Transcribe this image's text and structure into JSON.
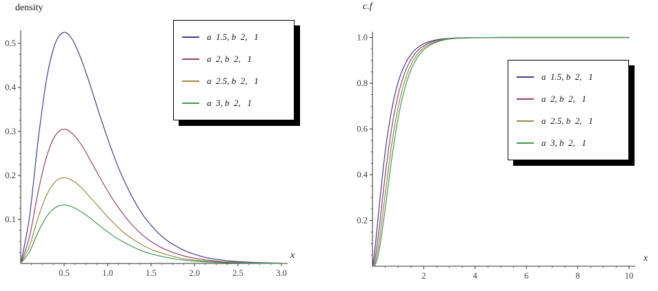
{
  "chart_data": [
    {
      "type": "line",
      "title": "density",
      "xlabel": "x",
      "ylabel": "density",
      "xlim": [
        0,
        3.05
      ],
      "ylim": [
        0,
        0.56
      ],
      "xticks": [
        0.5,
        1.0,
        1.5,
        2.0,
        2.5,
        3.0
      ],
      "xtick_labels": [
        "0.5",
        "1.0",
        "1.5",
        "2.0",
        "2.5",
        "3.0"
      ],
      "yticks": [
        0.1,
        0.2,
        0.3,
        0.4,
        0.5
      ],
      "ytick_labels": [
        "0.1",
        "0.2",
        "0.3",
        "0.4",
        "0.5"
      ],
      "grid": false,
      "legend_position": "top-right",
      "x": [
        0,
        0.1,
        0.2,
        0.3,
        0.4,
        0.5,
        0.6,
        0.7,
        0.8,
        0.9,
        1.0,
        1.1,
        1.2,
        1.3,
        1.4,
        1.5,
        1.6,
        1.7,
        1.8,
        1.9,
        2.0,
        2.1,
        2.2,
        2.3,
        2.4,
        2.5,
        2.6,
        2.7,
        2.8,
        2.9,
        3.0
      ],
      "series": [
        {
          "name": "a  1.5, b  2,   1",
          "color": "#3d3d99",
          "values": [
            0,
            0.104,
            0.279,
            0.421,
            0.501,
            0.525,
            0.507,
            0.462,
            0.405,
            0.343,
            0.284,
            0.23,
            0.184,
            0.145,
            0.112,
            0.087,
            0.066,
            0.05,
            0.038,
            0.028,
            0.021,
            0.015,
            0.011,
            0.0084,
            0.006,
            0.0044,
            0.0032,
            0.0023,
            0.0017,
            0.0012,
            0.0008
          ]
        },
        {
          "name": "a  2, b  2,   1",
          "color": "#993d71",
          "values": [
            0,
            0.06,
            0.162,
            0.244,
            0.291,
            0.305,
            0.294,
            0.269,
            0.235,
            0.199,
            0.165,
            0.134,
            0.107,
            0.084,
            0.065,
            0.05,
            0.038,
            0.029,
            0.022,
            0.016,
            0.012,
            0.0088,
            0.0066,
            0.0048,
            0.0035,
            0.0026,
            0.0019,
            0.0013,
            0.001,
            0.0007,
            0.0005
          ]
        },
        {
          "name": "a  2.5, b  2,   1",
          "color": "#998b3d",
          "values": [
            0,
            0.039,
            0.104,
            0.156,
            0.186,
            0.195,
            0.188,
            0.172,
            0.15,
            0.128,
            0.106,
            0.086,
            0.068,
            0.054,
            0.042,
            0.032,
            0.025,
            0.019,
            0.014,
            0.01,
            0.0078,
            0.0057,
            0.0042,
            0.0031,
            0.0022,
            0.0016,
            0.0012,
            0.0009,
            0.0006,
            0.0004,
            0.0003
          ]
        },
        {
          "name": "a  3, b  2,   1",
          "color": "#3d9954",
          "values": [
            0,
            0.026,
            0.071,
            0.107,
            0.127,
            0.133,
            0.128,
            0.117,
            0.103,
            0.087,
            0.072,
            0.058,
            0.047,
            0.037,
            0.028,
            0.022,
            0.017,
            0.013,
            0.0095,
            0.0071,
            0.0053,
            0.0039,
            0.0029,
            0.0021,
            0.0015,
            0.0011,
            0.0008,
            0.0006,
            0.0004,
            0.0003,
            0.0002
          ]
        }
      ]
    },
    {
      "type": "line",
      "title": "c.f",
      "xlabel": "x",
      "ylabel": "c.f",
      "xlim": [
        0,
        10.2
      ],
      "ylim": [
        0,
        1.05
      ],
      "xticks": [
        2,
        4,
        6,
        8,
        10
      ],
      "xtick_labels": [
        "2",
        "4",
        "6",
        "8",
        "10"
      ],
      "yticks": [
        0.2,
        0.4,
        0.6,
        0.8,
        1.0
      ],
      "ytick_labels": [
        "0.2",
        "0.4",
        "0.6",
        "0.8",
        "1.0"
      ],
      "grid": false,
      "legend_position": "right",
      "x": [
        0,
        0.1,
        0.25,
        0.5,
        0.75,
        1,
        1.25,
        1.5,
        1.75,
        2,
        2.25,
        2.5,
        2.75,
        3,
        3.25,
        3.5,
        3.75,
        4,
        4.5,
        5,
        5.5,
        6,
        7,
        8,
        9,
        10
      ],
      "series": [
        {
          "name": "a  1.5, b  2,   1",
          "color": "#3d3d99",
          "values": [
            0,
            0.077,
            0.247,
            0.503,
            0.685,
            0.804,
            0.879,
            0.926,
            0.955,
            0.973,
            0.983,
            0.99,
            0.994,
            0.996,
            0.998,
            0.9987,
            0.9992,
            0.9995,
            0.9998,
            0.9999,
            1,
            1,
            1,
            1,
            1,
            1
          ]
        },
        {
          "name": "a  2, b  2,   1",
          "color": "#993d71",
          "values": [
            0,
            0.033,
            0.155,
            0.4,
            0.604,
            0.748,
            0.843,
            0.903,
            0.941,
            0.964,
            0.978,
            0.987,
            0.992,
            0.995,
            0.997,
            0.998,
            0.9989,
            0.9993,
            0.9997,
            0.9999,
            1,
            1,
            1,
            1,
            1,
            1
          ]
        },
        {
          "name": "a  2.5, b  2,   1",
          "color": "#998b3d",
          "values": [
            0,
            0.014,
            0.097,
            0.318,
            0.532,
            0.695,
            0.807,
            0.88,
            0.926,
            0.955,
            0.972,
            0.983,
            0.99,
            0.994,
            0.996,
            0.998,
            0.9986,
            0.9991,
            0.9997,
            0.9999,
            1,
            1,
            1,
            1,
            1,
            1
          ]
        },
        {
          "name": "a  3, b  2,   1",
          "color": "#3d9954",
          "values": [
            0,
            0.006,
            0.061,
            0.253,
            0.469,
            0.647,
            0.773,
            0.858,
            0.912,
            0.946,
            0.967,
            0.98,
            0.988,
            0.993,
            0.996,
            0.997,
            0.998,
            0.999,
            0.9996,
            0.9999,
            1,
            1,
            1,
            1,
            1,
            1
          ]
        }
      ]
    }
  ]
}
